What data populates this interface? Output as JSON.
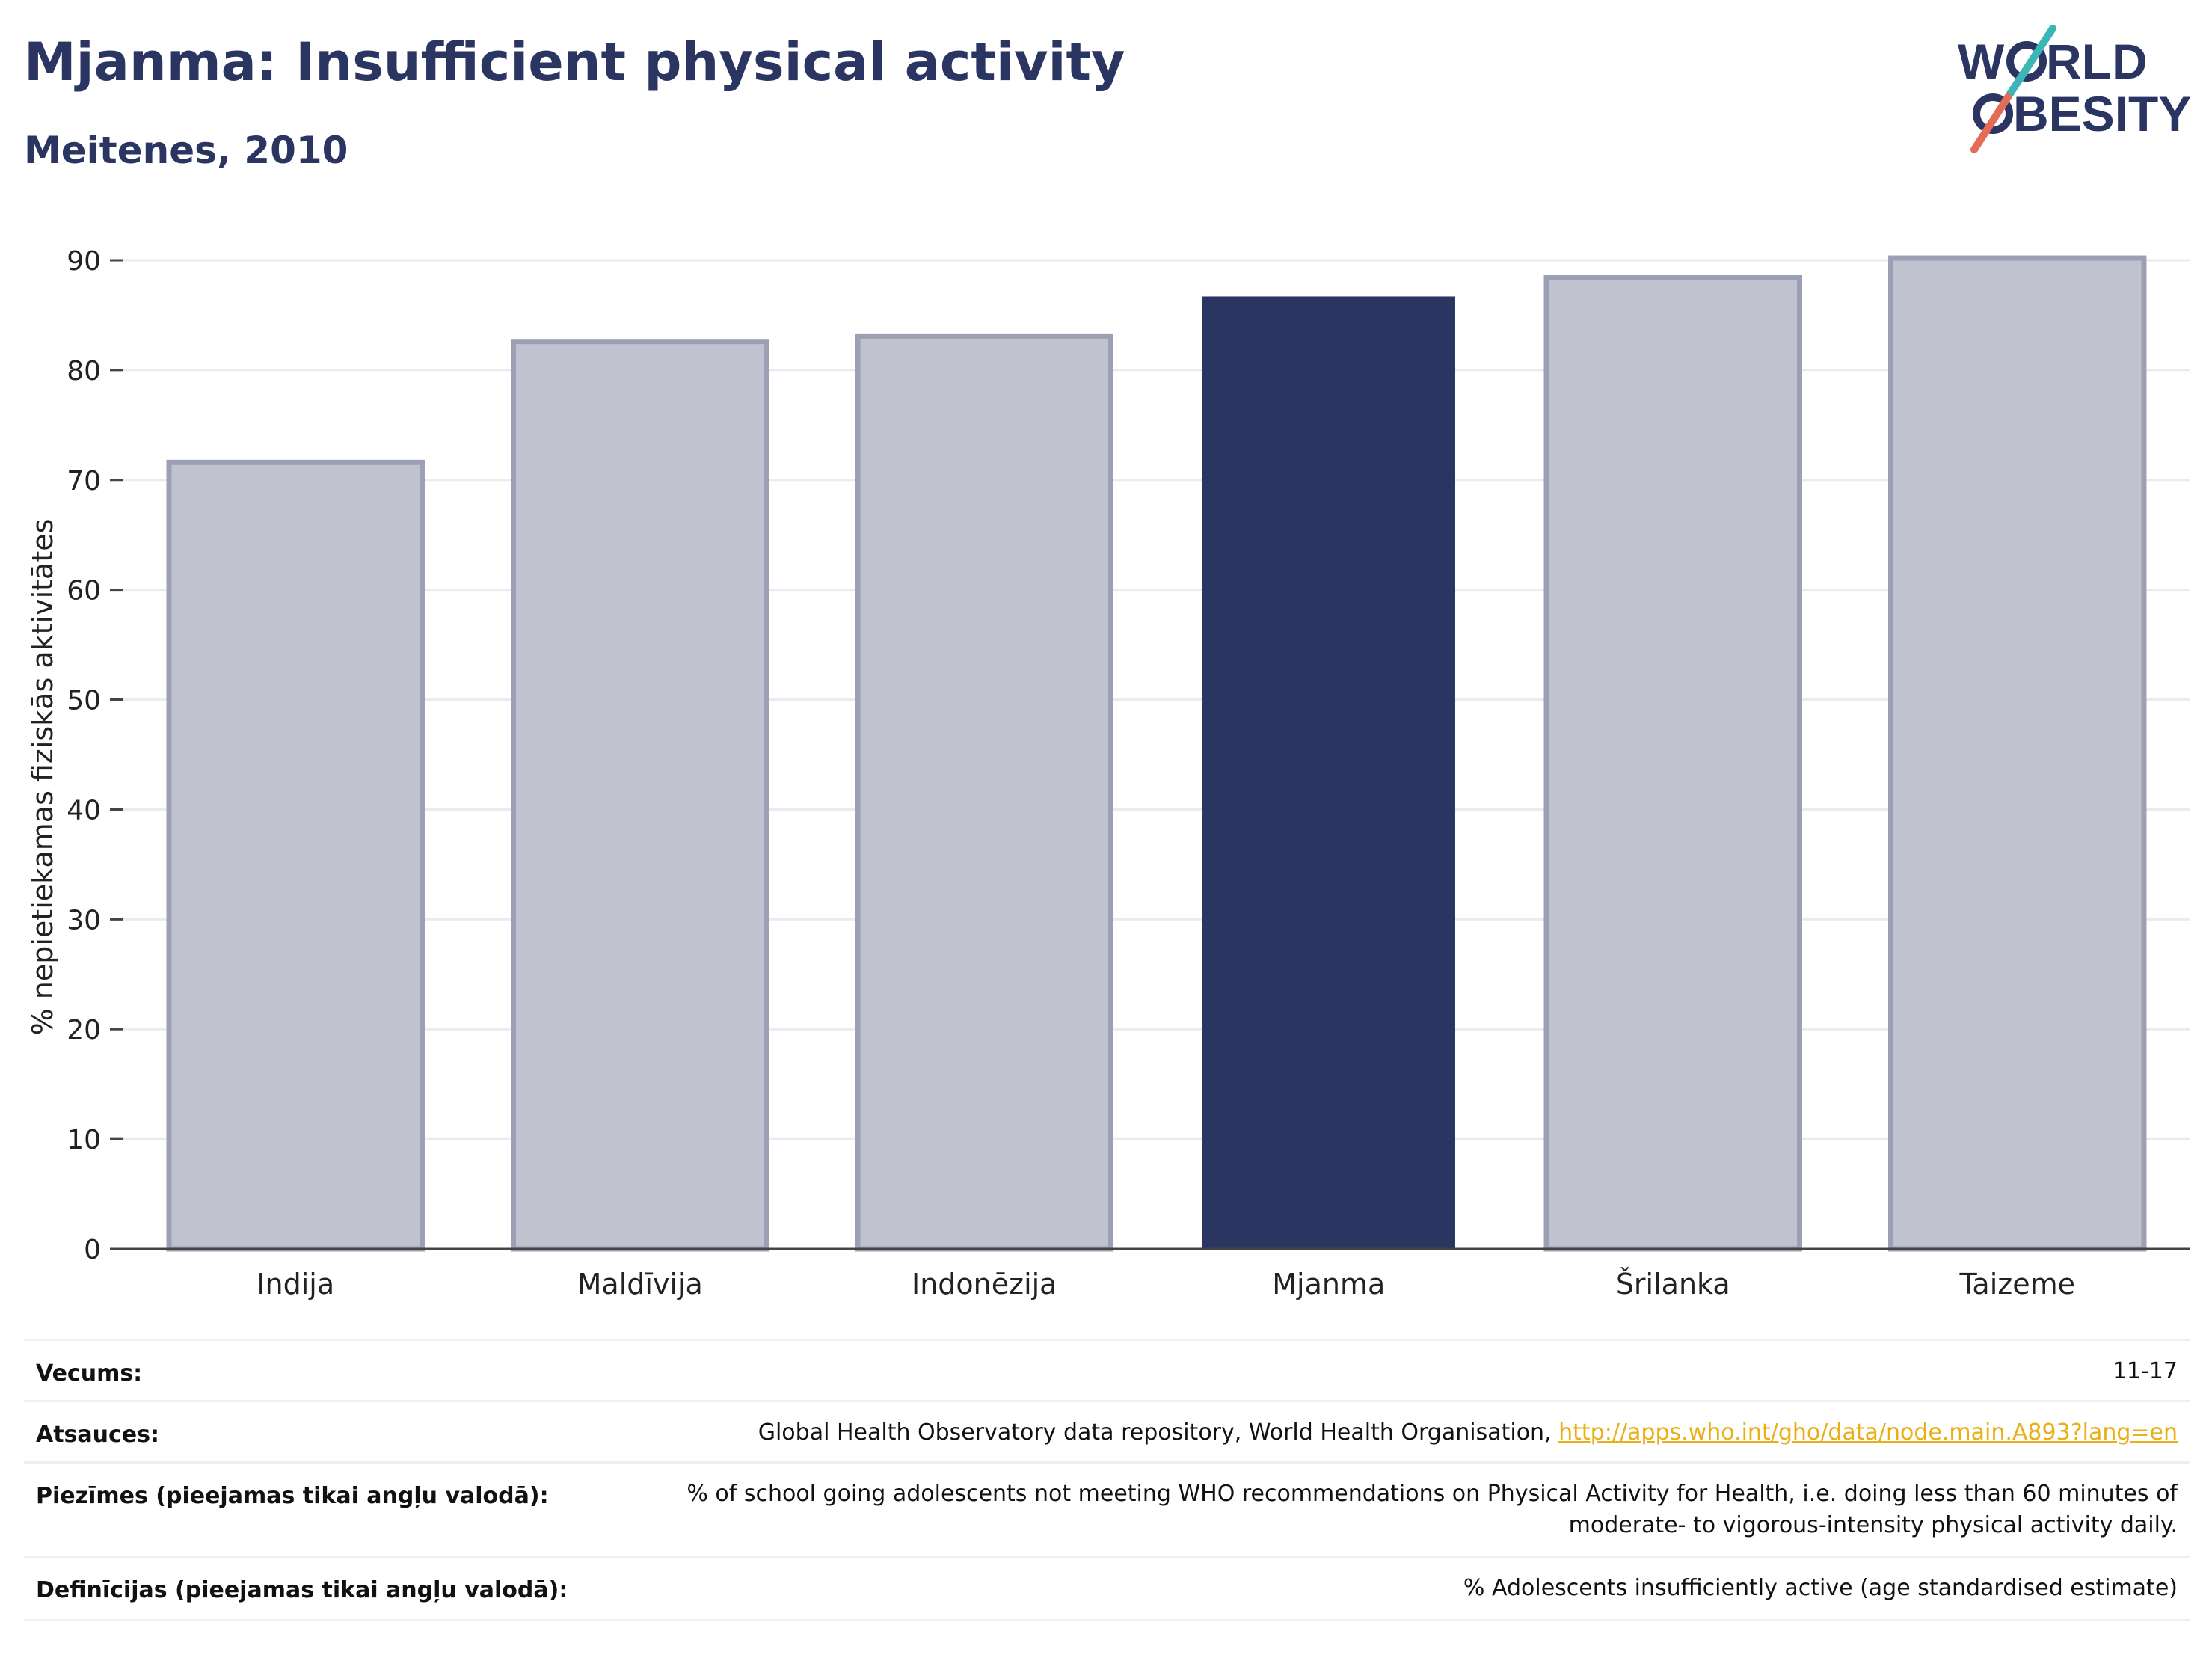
{
  "title": "Mjanma: Insufficient physical activity",
  "subtitle": "Meitenes, 2010",
  "logo": {
    "line1": "WORLD",
    "line2": "OBESITY",
    "line1_prefix": "W",
    "line1_suffix": "RLD",
    "line2_suffix": "BESITY"
  },
  "colors": {
    "highlight": "#2b3561",
    "bar_fill": "#c0c3cf",
    "bar_stroke": "#9ba0b5",
    "title": "#2b3561",
    "link": "#e8b016",
    "logo_teal": "#3bb5b5",
    "logo_coral": "#e46c57"
  },
  "chart_data": {
    "type": "bar",
    "title": "Mjanma: Insufficient physical activity",
    "subtitle": "Meitenes, 2010",
    "ylabel": "% nepietiekamas fiziskās aktivitātes",
    "xlabel": "",
    "categories": [
      "Indija",
      "Maldīvija",
      "Indonēzija",
      "Mjanma",
      "Šrilanka",
      "Taizeme"
    ],
    "values": [
      71.6,
      82.6,
      83.1,
      86.7,
      88.4,
      90.2
    ],
    "highlight": "Mjanma",
    "ylim": [
      0,
      90
    ],
    "yticks": [
      0,
      10,
      20,
      30,
      40,
      50,
      60,
      70,
      80,
      90
    ],
    "grid": true,
    "legend": "none"
  },
  "info": {
    "rows": [
      {
        "key": "Vecums:",
        "value": "11-17"
      },
      {
        "key": "Atsauces:",
        "value": "Global Health Observatory data repository, World Health Organisation, ",
        "link": "http://apps.who.int/gho/data/node.main.A893?lang=en"
      },
      {
        "key": "Piezīmes (pieejamas tikai angļu valodā):",
        "value": "% of school going adolescents not meeting WHO recommendations on Physical Activity for Health, i.e. doing less than 60 minutes of moderate- to vigorous-intensity physical activity daily."
      },
      {
        "key": "Definīcijas (pieejamas tikai angļu valodā):",
        "value": "% Adolescents insufficiently active (age standardised estimate)"
      }
    ]
  }
}
